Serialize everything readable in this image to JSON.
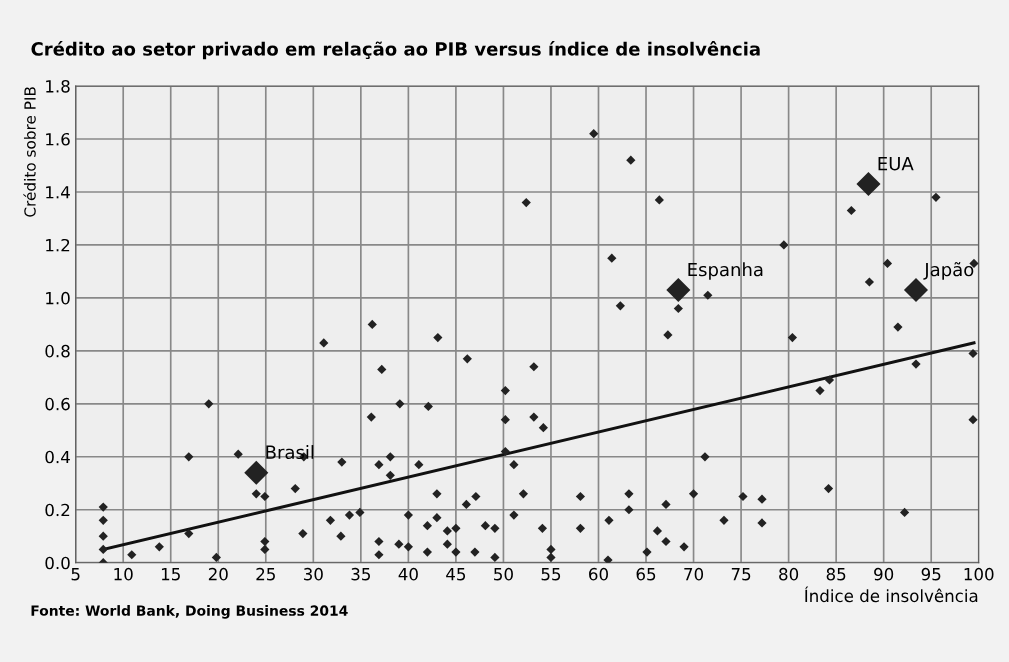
{
  "chart_data": {
    "type": "scatter",
    "title": "Crédito ao setor privado em relação ao PIB versus índice de insolvência",
    "xlabel": "Índice de insolvência",
    "ylabel": "Crédito sobre PIB",
    "xlim": [
      5,
      100
    ],
    "xticks": [
      5,
      10,
      15,
      20,
      25,
      30,
      35,
      40,
      45,
      50,
      55,
      60,
      65,
      70,
      75,
      80,
      85,
      90,
      95,
      100
    ],
    "ylim": [
      0,
      1.8
    ],
    "yticks": [
      {
        "value": 0,
        "label": "0.0"
      },
      {
        "value": 0.2,
        "label": "0.2"
      },
      {
        "value": 0.4,
        "label": "0.4"
      },
      {
        "value": 0.6,
        "label": "0.6"
      },
      {
        "value": 0.8,
        "label": "0.8"
      },
      {
        "value": 1.0,
        "label": "1.0"
      },
      {
        "value": 1.2,
        "label": "1.2"
      },
      {
        "value": 1.4,
        "label": "1.4"
      },
      {
        "value": 1.6,
        "label": "1.6"
      },
      {
        "value": 1.8,
        "label": "1.8"
      }
    ],
    "grid": true,
    "marker": "diamond",
    "series": [
      {
        "color": "#222222",
        "x": [
          36.2,
          31.1,
          37.2,
          39.1,
          19.0,
          36.1,
          16.9,
          22.1,
          24.0,
          24.9,
          24.9,
          24.9,
          19.8,
          16.9,
          13.8,
          10.9,
          7.9,
          7.9,
          7.9,
          7.9,
          7.9,
          28.1,
          29.0,
          28.9,
          33.0,
          31.8,
          32.9,
          33.8,
          34.9,
          42.1,
          46.2,
          53.2,
          50.2,
          50.2,
          53.2,
          54.2,
          50.2,
          51.1,
          36.9,
          38.1,
          38.1,
          41.1,
          40.0,
          43.0,
          43.0,
          42.0,
          36.9,
          36.9,
          39.0,
          40.0,
          42.0,
          44.1,
          44.1,
          45.0,
          45.0,
          46.1,
          47.1,
          47.0,
          48.1,
          49.1,
          49.1,
          51.1,
          52.1,
          54.1,
          55.0,
          55.0,
          58.1,
          58.1,
          61.0,
          61.1,
          63.2,
          63.2,
          65.1,
          66.2,
          67.1,
          67.1,
          69.0,
          59.5,
          63.4,
          52.4,
          66.4,
          61.4,
          62.3,
          68.4,
          67.3,
          43.1,
          95.5,
          86.6,
          79.5,
          90.4,
          99.5,
          88.5,
          71.5,
          91.5,
          80.4,
          99.4,
          93.4,
          84.3,
          83.3,
          99.4,
          71.2,
          70.0,
          75.2,
          77.2,
          73.2,
          77.2,
          84.2,
          92.2
        ],
        "values": [
          0.9,
          0.83,
          0.73,
          0.6,
          0.6,
          0.55,
          0.4,
          0.41,
          0.26,
          0.25,
          0.08,
          0.05,
          0.02,
          0.11,
          0.06,
          0.03,
          0.21,
          0.16,
          0.1,
          0.05,
          0.0,
          0.28,
          0.4,
          0.11,
          0.38,
          0.16,
          0.1,
          0.18,
          0.19,
          0.59,
          0.77,
          0.74,
          0.65,
          0.54,
          0.55,
          0.51,
          0.42,
          0.37,
          0.37,
          0.4,
          0.33,
          0.37,
          0.18,
          0.26,
          0.17,
          0.14,
          0.08,
          0.03,
          0.07,
          0.06,
          0.04,
          0.12,
          0.07,
          0.13,
          0.04,
          0.22,
          0.25,
          0.04,
          0.14,
          0.13,
          0.02,
          0.18,
          0.26,
          0.13,
          0.05,
          0.02,
          0.25,
          0.13,
          0.01,
          0.16,
          0.26,
          0.2,
          0.04,
          0.12,
          0.22,
          0.08,
          0.06,
          1.62,
          1.52,
          1.36,
          1.37,
          1.15,
          0.97,
          0.96,
          0.86,
          0.85,
          1.38,
          1.33,
          1.2,
          1.13,
          1.13,
          1.06,
          1.01,
          0.89,
          0.85,
          0.79,
          0.75,
          0.69,
          0.65,
          0.54,
          0.4,
          0.26,
          0.25,
          0.24,
          0.16,
          0.15,
          0.28,
          0.19
        ]
      },
      {
        "color": "#222222",
        "x": [
          24.0,
          68.4,
          88.4,
          93.4
        ],
        "values": [
          0.34,
          1.03,
          1.43,
          1.03
        ],
        "sizes": [
          1,
          1,
          1,
          1
        ]
      },
      {
        "type": "line",
        "color": "#111111",
        "x": [
          7.9,
          99.5
        ],
        "values": [
          0.05,
          0.83
        ],
        "marker": "none"
      }
    ],
    "annotations": [
      {
        "text": "Brasil",
        "x": 24.0,
        "y": 0.34
      },
      {
        "text": "Espanha",
        "x": 68.4,
        "y": 1.03
      },
      {
        "text": "EUA",
        "x": 88.4,
        "y": 1.43
      },
      {
        "text": "Japão",
        "x": 93.4,
        "y": 1.03
      },
      "Fonte: World Bank, Doing Business 2014"
    ]
  }
}
